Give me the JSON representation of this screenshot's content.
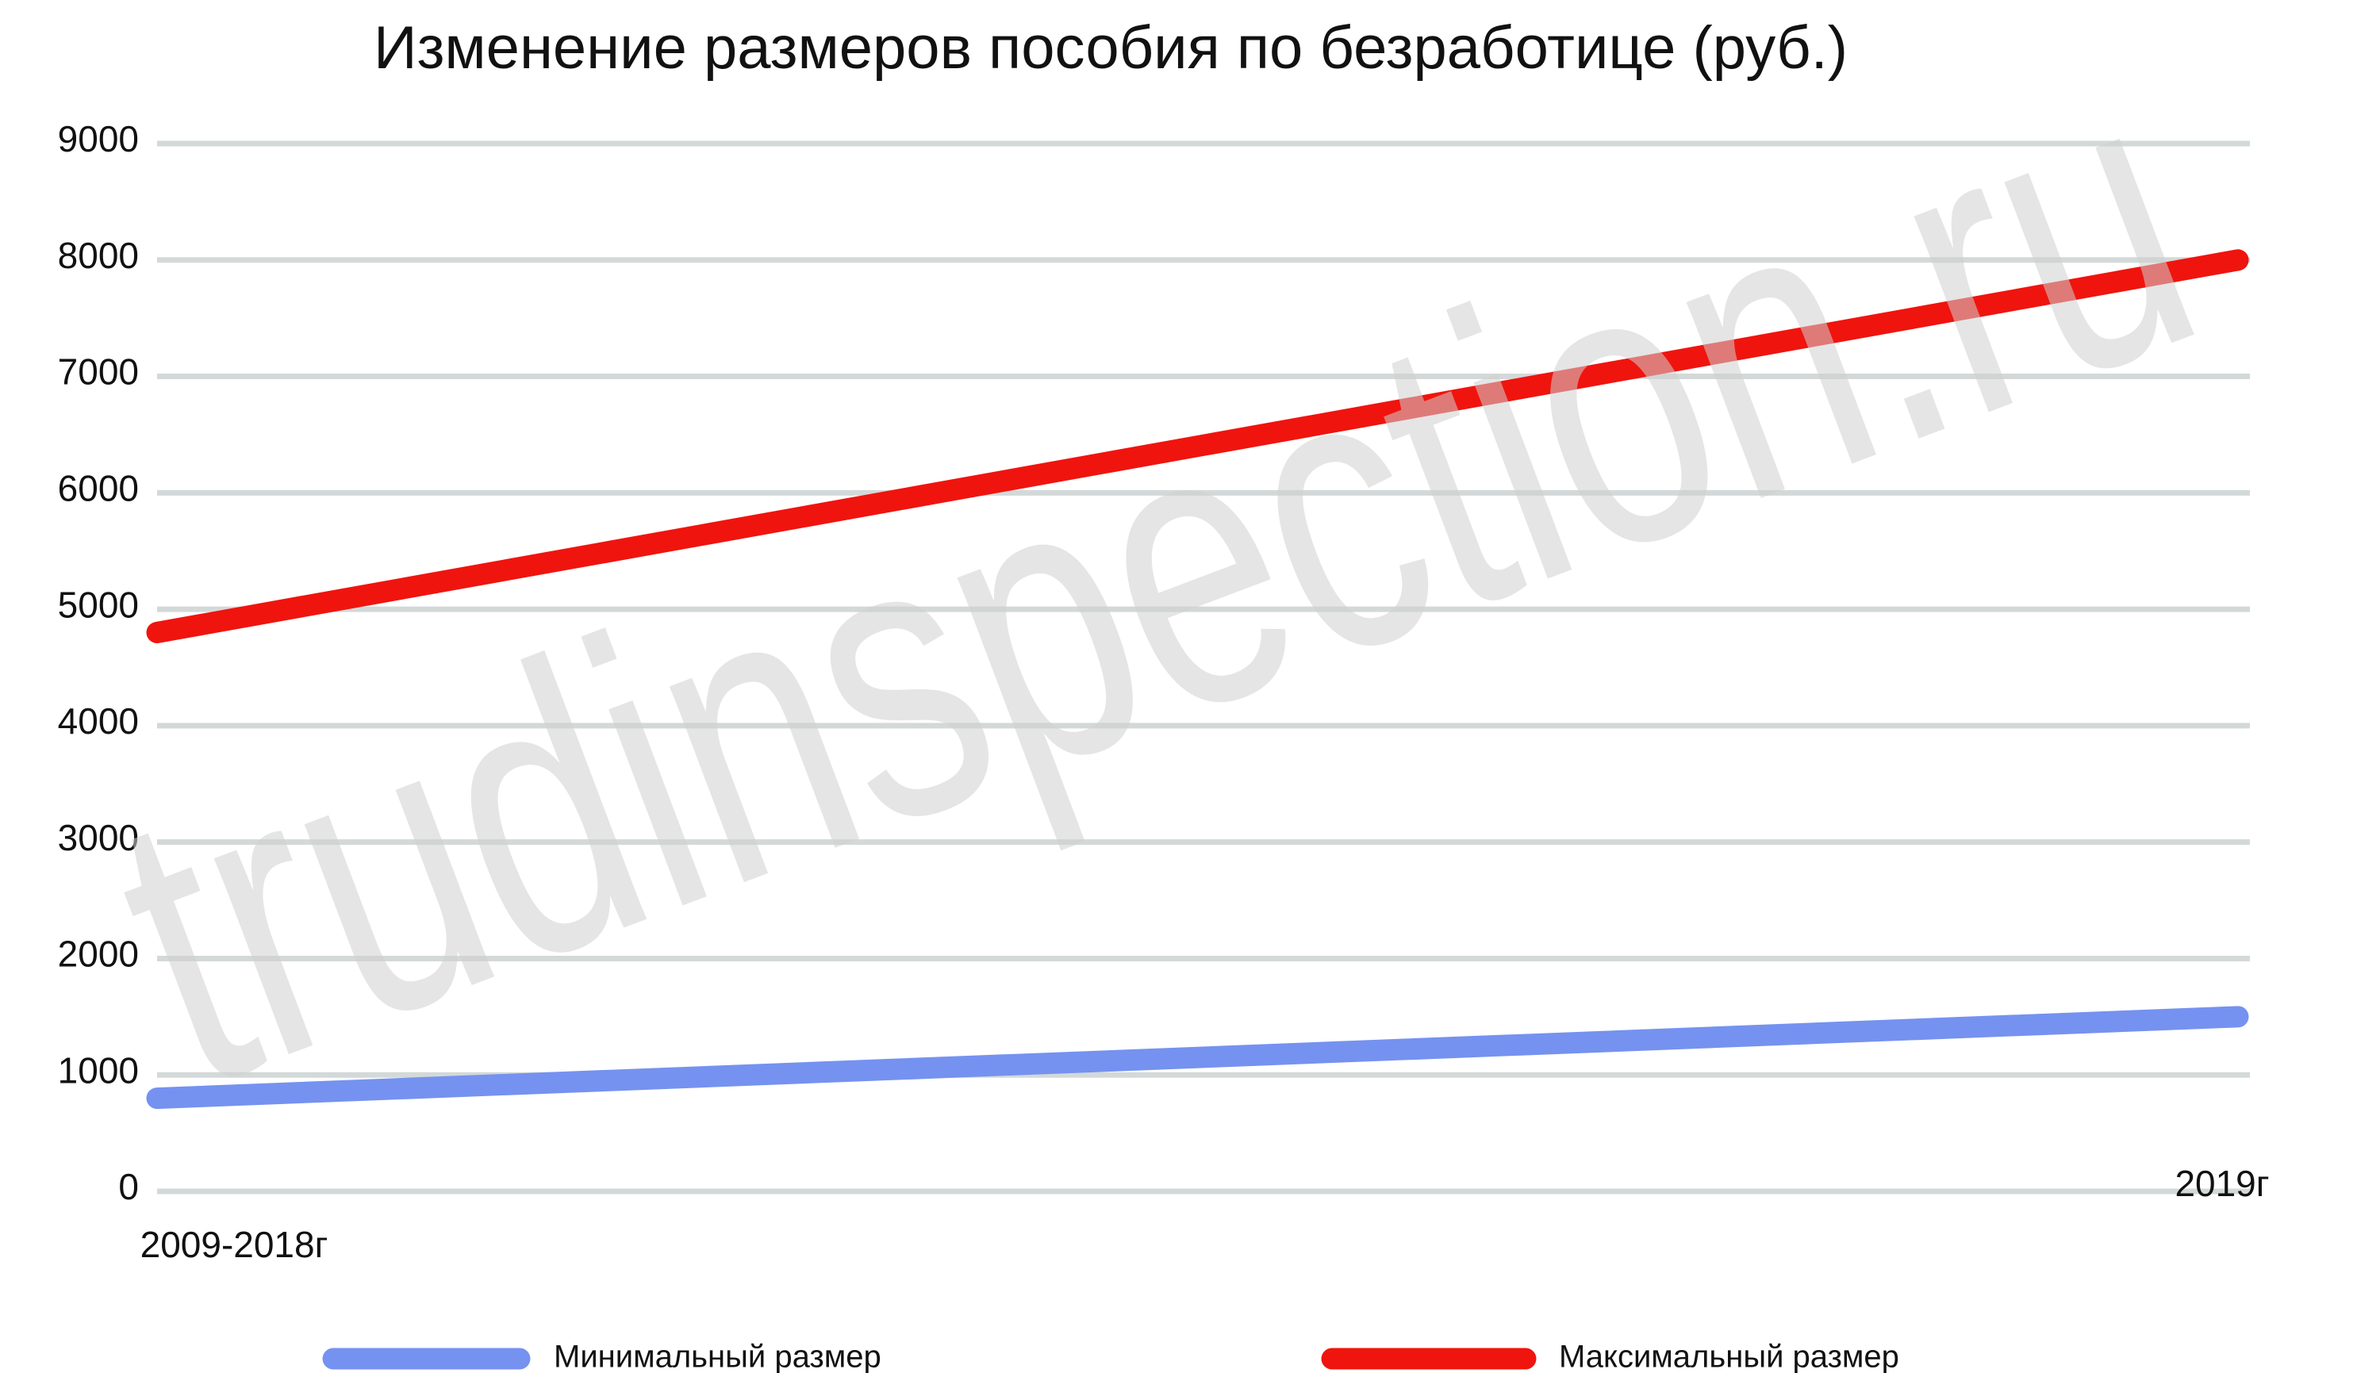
{
  "chart_data": {
    "type": "line",
    "title": "Изменение размеров пособия по безработице (руб.)",
    "watermark": "trudinspection.ru",
    "categories": [
      "2009-2018г",
      "2019г"
    ],
    "series": [
      {
        "name": "Минимальный размер",
        "color": "#7592f0",
        "values": [
          800,
          1500
        ]
      },
      {
        "name": "Максимальный размер",
        "color": "#f0140e",
        "values": [
          4800,
          8000
        ]
      }
    ],
    "ylim": [
      0,
      9000
    ],
    "yticks": [
      0,
      1000,
      2000,
      3000,
      4000,
      5000,
      6000,
      7000,
      8000,
      9000
    ],
    "grid": true,
    "legend": "bottom"
  }
}
